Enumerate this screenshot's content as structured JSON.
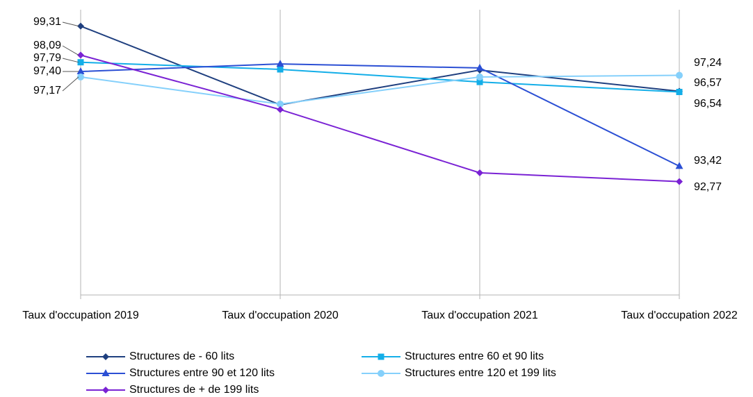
{
  "chart_data": {
    "type": "line",
    "categories": [
      "Taux d'occupation 2019",
      "Taux d'occupation 2020",
      "Taux d'occupation 2021",
      "Taux d'occupation 2022"
    ],
    "ylim": [
      88,
      100
    ],
    "grid": true,
    "legend": "bottom",
    "series": [
      {
        "name": "Structures de - 60 lits",
        "color": "#1f3f7f",
        "marker": "diamond",
        "values": [
          99.31,
          96.0,
          97.46,
          96.57
        ],
        "value_labels": [
          "99,31",
          null,
          null,
          "96,57"
        ]
      },
      {
        "name": "Structures entre 60 et 90 lits",
        "color": "#13aee8",
        "marker": "square",
        "values": [
          97.79,
          97.49,
          96.96,
          96.54
        ],
        "value_labels": [
          "97,79",
          null,
          null,
          "96,54"
        ]
      },
      {
        "name": "Structures entre 90 et 120 lits",
        "color": "#2b4fd4",
        "marker": "triangle",
        "values": [
          97.4,
          97.72,
          97.55,
          93.42
        ],
        "value_labels": [
          "97,40",
          null,
          null,
          "93,42"
        ]
      },
      {
        "name": "Structures entre 120 et 199 lits",
        "color": "#85d0fb",
        "marker": "circle",
        "values": [
          97.17,
          96.03,
          97.17,
          97.24
        ],
        "value_labels": [
          "97,17",
          null,
          null,
          "97,24"
        ]
      },
      {
        "name": "Structures de + de 199 lits",
        "color": "#7a22d4",
        "marker": "diamond",
        "values": [
          98.09,
          95.8,
          93.14,
          92.77
        ],
        "value_labels": [
          "98,09",
          null,
          null,
          "92,77"
        ]
      }
    ]
  }
}
